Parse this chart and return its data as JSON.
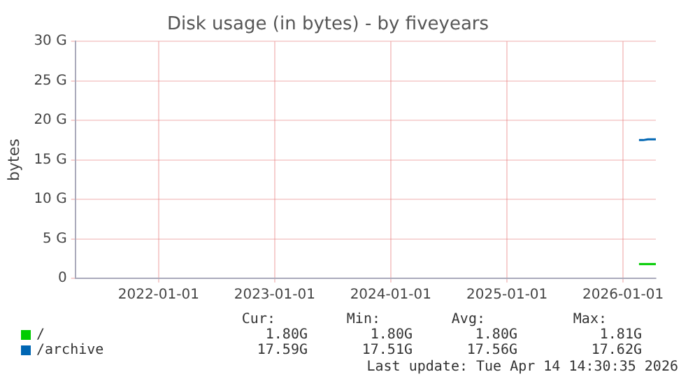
{
  "chart_data": {
    "type": "line",
    "title": "Disk usage (in bytes) - by fiveyears",
    "ylabel": "bytes",
    "xlim": [
      "2021-04-14",
      "2026-04-14"
    ],
    "xticks": [
      "2022-01-01",
      "2023-01-01",
      "2024-01-01",
      "2025-01-01",
      "2026-01-01"
    ],
    "ylim": [
      0,
      30
    ],
    "yticks": [
      0,
      {
        "value": 5,
        "label": "5 G"
      },
      {
        "value": 10,
        "label": "10 G"
      },
      {
        "value": 15,
        "label": "15 G"
      },
      {
        "value": 20,
        "label": "20 G"
      },
      {
        "value": 25,
        "label": "25 G"
      },
      {
        "value": 30,
        "label": "30 G"
      }
    ],
    "series": [
      {
        "name": "/",
        "color": "#00cc00",
        "x": [
          "2026-02-20",
          "2026-03-05",
          "2026-03-20",
          "2026-04-14"
        ],
        "values": [
          1.8,
          1.8,
          1.8,
          1.8
        ]
      },
      {
        "name": "/archive",
        "color": "#0066b3",
        "x": [
          "2026-02-20",
          "2026-03-05",
          "2026-03-20",
          "2026-04-14"
        ],
        "values": [
          17.5,
          17.5,
          17.6,
          17.6
        ]
      }
    ],
    "grid": true,
    "legend": "bottom",
    "marker": "none",
    "line_style": "solid",
    "annotations": [
      "Cur:",
      "Min:",
      "Avg:",
      "Max:",
      "1.80G",
      "1.80G",
      "1.80G",
      "1.81G",
      "17.59G",
      "17.51G",
      "17.56G",
      "17.62G",
      "Last update: Tue Apr 14 14:30:35 2026"
    ]
  }
}
